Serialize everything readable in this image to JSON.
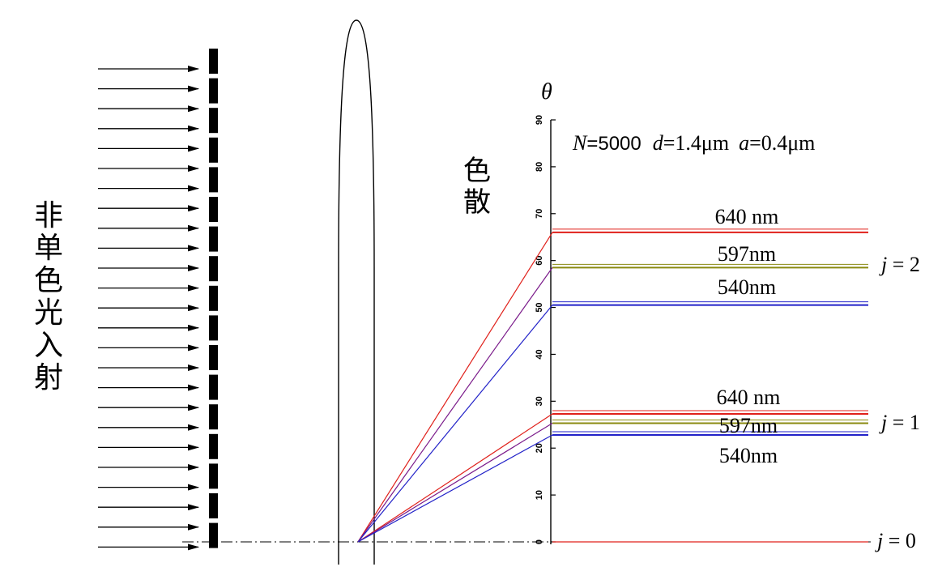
{
  "side_label": "非单色光入射",
  "dispersion_label": "色散",
  "axis": {
    "symbol": "θ",
    "ticks": [
      "0",
      "10",
      "20",
      "30",
      "40",
      "50",
      "60",
      "70",
      "80",
      "90"
    ]
  },
  "params": {
    "N_sym": "N",
    "N_val": "=5000",
    "d_sym": "d",
    "d_val": "=1.4μm",
    "a_sym": "a",
    "a_val": "=0.4μm"
  },
  "orders": [
    {
      "j_label": "j = 2",
      "lines": [
        {
          "label": "640 nm",
          "angle": 66,
          "color": "#e0201a"
        },
        {
          "label": "597nm",
          "angle": 58.5,
          "color": "#8a8a10"
        },
        {
          "label": "540nm",
          "angle": 50.5,
          "color": "#2222c8"
        }
      ]
    },
    {
      "j_label": "j = 1",
      "lines": [
        {
          "label": "640 nm",
          "angle": 27.3,
          "color": "#e0201a"
        },
        {
          "label": "597nm",
          "angle": 25.3,
          "color": "#8a8a10"
        },
        {
          "label": "540nm",
          "angle": 22.8,
          "color": "#2222c8"
        }
      ]
    },
    {
      "j_label": "j = 0",
      "lines": [
        {
          "label": "",
          "angle": 0,
          "color": "#e0201a"
        }
      ]
    }
  ],
  "colors": {
    "red": "#e0201a",
    "yellow": "#8a8a10",
    "blue": "#2222c8",
    "purple": "#7a1a8a",
    "ink": "#000000"
  }
}
